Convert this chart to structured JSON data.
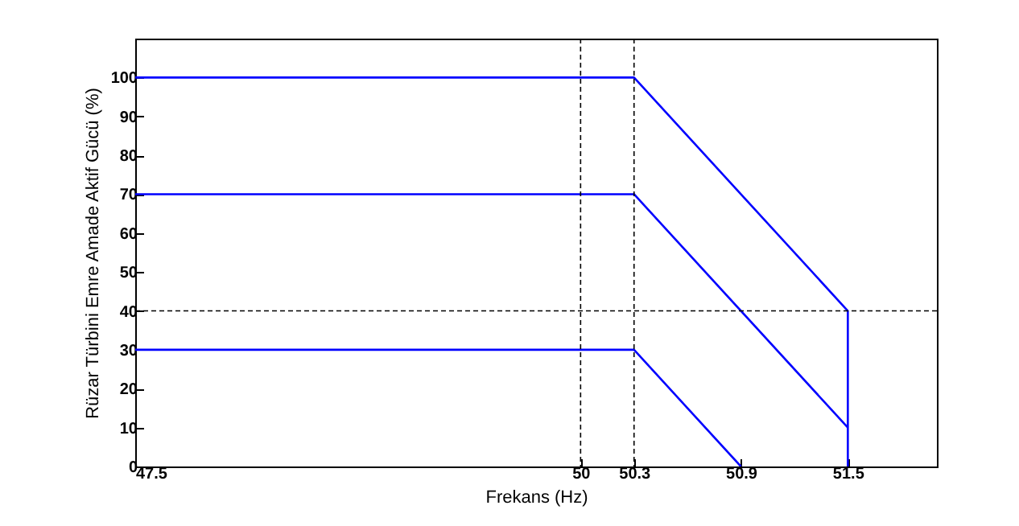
{
  "chart_data": {
    "type": "line",
    "xlabel": "Frekans (Hz)",
    "ylabel": "Rüzar Türbini Emre Amade Aktif Gücü (%)",
    "xlim": [
      47.5,
      52
    ],
    "xticks": [
      47.5,
      50,
      50.3,
      50.9,
      51.5
    ],
    "ylim": [
      0,
      110
    ],
    "yticks": [
      0,
      10,
      20,
      30,
      40,
      50,
      60,
      70,
      80,
      90,
      100
    ],
    "grid": false,
    "legend": false,
    "line_style": "solid",
    "marker": "none",
    "series": [
      {
        "color": "#0000ff",
        "x": [
          47.5,
          50.3,
          51.5,
          51.5
        ],
        "values": [
          100,
          100,
          40,
          0
        ]
      },
      {
        "color": "#0000ff",
        "x": [
          47.5,
          50.3,
          51.5
        ],
        "values": [
          70,
          70,
          10
        ]
      },
      {
        "color": "#0000ff",
        "x": [
          47.5,
          50.3,
          50.9
        ],
        "values": [
          30,
          30,
          0
        ]
      }
    ],
    "ref_lines": [
      {
        "axis": "x",
        "value": 50,
        "color": "#000000",
        "line_style": "dashed"
      },
      {
        "axis": "x",
        "value": 50.3,
        "color": "#000000",
        "line_style": "dashed"
      },
      {
        "axis": "y",
        "value": 40,
        "color": "#000000",
        "line_style": "dashed"
      }
    ]
  }
}
